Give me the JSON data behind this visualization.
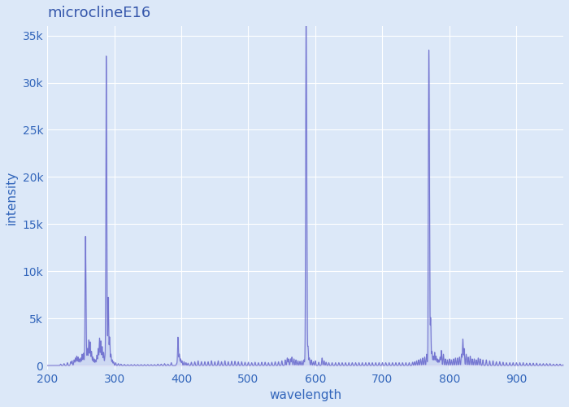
{
  "title": "microclineE16",
  "xlabel": "wavelength",
  "ylabel": "intensity",
  "xlim": [
    200,
    970
  ],
  "ylim": [
    -400,
    36000
  ],
  "yticks": [
    0,
    5000,
    10000,
    15000,
    20000,
    25000,
    30000,
    35000
  ],
  "ytick_labels": [
    "0",
    "5k",
    "10k",
    "15k",
    "20k",
    "25k",
    "30k",
    "35k"
  ],
  "xticks": [
    200,
    300,
    400,
    500,
    600,
    700,
    800,
    900
  ],
  "background_color": "#dce8f8",
  "plot_background": "#dce8f8",
  "line_color": "#6666cc",
  "title_color": "#3355aa",
  "label_color": "#3366bb",
  "grid_color": "#ffffff",
  "peaks": [
    [
      220,
      150
    ],
    [
      225,
      200
    ],
    [
      230,
      300
    ],
    [
      235,
      400
    ],
    [
      237,
      500
    ],
    [
      240,
      600
    ],
    [
      242,
      800
    ],
    [
      244,
      1000
    ],
    [
      246,
      900
    ],
    [
      248,
      700
    ],
    [
      250,
      800
    ],
    [
      252,
      1200
    ],
    [
      254,
      1300
    ],
    [
      256,
      1000
    ],
    [
      257,
      12800
    ],
    [
      258,
      2500
    ],
    [
      260,
      1800
    ],
    [
      262,
      2700
    ],
    [
      264,
      2500
    ],
    [
      266,
      1500
    ],
    [
      268,
      900
    ],
    [
      270,
      700
    ],
    [
      272,
      600
    ],
    [
      274,
      1100
    ],
    [
      276,
      1800
    ],
    [
      278,
      2900
    ],
    [
      280,
      2600
    ],
    [
      282,
      2000
    ],
    [
      284,
      1400
    ],
    [
      286,
      800
    ],
    [
      288,
      31500
    ],
    [
      289,
      5000
    ],
    [
      291,
      7200
    ],
    [
      293,
      3000
    ],
    [
      295,
      1200
    ],
    [
      297,
      600
    ],
    [
      299,
      400
    ],
    [
      302,
      300
    ],
    [
      306,
      200
    ],
    [
      310,
      150
    ],
    [
      315,
      120
    ],
    [
      320,
      100
    ],
    [
      325,
      100
    ],
    [
      330,
      100
    ],
    [
      335,
      100
    ],
    [
      340,
      100
    ],
    [
      345,
      100
    ],
    [
      350,
      100
    ],
    [
      355,
      100
    ],
    [
      360,
      100
    ],
    [
      365,
      150
    ],
    [
      370,
      150
    ],
    [
      375,
      200
    ],
    [
      380,
      150
    ],
    [
      385,
      300
    ],
    [
      393,
      200
    ],
    [
      395,
      3000
    ],
    [
      397,
      1200
    ],
    [
      399,
      700
    ],
    [
      401,
      500
    ],
    [
      404,
      400
    ],
    [
      407,
      300
    ],
    [
      410,
      250
    ],
    [
      415,
      350
    ],
    [
      420,
      400
    ],
    [
      425,
      500
    ],
    [
      430,
      400
    ],
    [
      435,
      400
    ],
    [
      440,
      400
    ],
    [
      445,
      500
    ],
    [
      450,
      400
    ],
    [
      455,
      500
    ],
    [
      460,
      400
    ],
    [
      465,
      500
    ],
    [
      470,
      400
    ],
    [
      475,
      450
    ],
    [
      480,
      450
    ],
    [
      485,
      400
    ],
    [
      490,
      400
    ],
    [
      495,
      350
    ],
    [
      500,
      350
    ],
    [
      505,
      300
    ],
    [
      510,
      350
    ],
    [
      515,
      300
    ],
    [
      520,
      350
    ],
    [
      525,
      350
    ],
    [
      530,
      300
    ],
    [
      535,
      350
    ],
    [
      540,
      400
    ],
    [
      545,
      400
    ],
    [
      550,
      500
    ],
    [
      555,
      600
    ],
    [
      558,
      800
    ],
    [
      560,
      700
    ],
    [
      563,
      700
    ],
    [
      565,
      900
    ],
    [
      568,
      700
    ],
    [
      571,
      600
    ],
    [
      574,
      500
    ],
    [
      577,
      450
    ],
    [
      580,
      500
    ],
    [
      583,
      600
    ],
    [
      585,
      800
    ],
    [
      586,
      34000
    ],
    [
      587,
      15000
    ],
    [
      589,
      2000
    ],
    [
      591,
      800
    ],
    [
      594,
      600
    ],
    [
      597,
      400
    ],
    [
      600,
      500
    ],
    [
      605,
      350
    ],
    [
      610,
      800
    ],
    [
      613,
      500
    ],
    [
      616,
      350
    ],
    [
      620,
      300
    ],
    [
      625,
      300
    ],
    [
      630,
      300
    ],
    [
      635,
      300
    ],
    [
      640,
      300
    ],
    [
      645,
      300
    ],
    [
      650,
      300
    ],
    [
      655,
      300
    ],
    [
      660,
      300
    ],
    [
      665,
      300
    ],
    [
      670,
      300
    ],
    [
      675,
      300
    ],
    [
      680,
      300
    ],
    [
      685,
      300
    ],
    [
      690,
      300
    ],
    [
      695,
      300
    ],
    [
      700,
      300
    ],
    [
      705,
      300
    ],
    [
      710,
      300
    ],
    [
      715,
      300
    ],
    [
      720,
      300
    ],
    [
      725,
      300
    ],
    [
      730,
      300
    ],
    [
      735,
      300
    ],
    [
      740,
      300
    ],
    [
      745,
      350
    ],
    [
      748,
      400
    ],
    [
      751,
      500
    ],
    [
      754,
      600
    ],
    [
      757,
      700
    ],
    [
      760,
      800
    ],
    [
      763,
      900
    ],
    [
      766,
      1200
    ],
    [
      769,
      27000
    ],
    [
      770,
      19000
    ],
    [
      772,
      5000
    ],
    [
      774,
      1500
    ],
    [
      776,
      1000
    ],
    [
      778,
      1400
    ],
    [
      780,
      1000
    ],
    [
      782,
      700
    ],
    [
      784,
      600
    ],
    [
      786,
      900
    ],
    [
      788,
      1600
    ],
    [
      791,
      1200
    ],
    [
      794,
      700
    ],
    [
      797,
      600
    ],
    [
      800,
      700
    ],
    [
      803,
      600
    ],
    [
      806,
      700
    ],
    [
      809,
      800
    ],
    [
      812,
      800
    ],
    [
      815,
      900
    ],
    [
      818,
      1200
    ],
    [
      820,
      2800
    ],
    [
      822,
      1800
    ],
    [
      825,
      1200
    ],
    [
      828,
      900
    ],
    [
      831,
      1000
    ],
    [
      834,
      700
    ],
    [
      837,
      700
    ],
    [
      840,
      600
    ],
    [
      843,
      800
    ],
    [
      846,
      700
    ],
    [
      850,
      600
    ],
    [
      855,
      600
    ],
    [
      860,
      500
    ],
    [
      865,
      500
    ],
    [
      870,
      400
    ],
    [
      875,
      400
    ],
    [
      880,
      350
    ],
    [
      885,
      300
    ],
    [
      890,
      300
    ],
    [
      895,
      300
    ],
    [
      900,
      300
    ],
    [
      905,
      300
    ],
    [
      910,
      300
    ],
    [
      915,
      250
    ],
    [
      920,
      250
    ],
    [
      925,
      250
    ],
    [
      930,
      250
    ],
    [
      935,
      200
    ],
    [
      940,
      200
    ],
    [
      945,
      200
    ],
    [
      950,
      200
    ],
    [
      955,
      150
    ],
    [
      960,
      150
    ],
    [
      965,
      150
    ],
    [
      970,
      100
    ]
  ]
}
